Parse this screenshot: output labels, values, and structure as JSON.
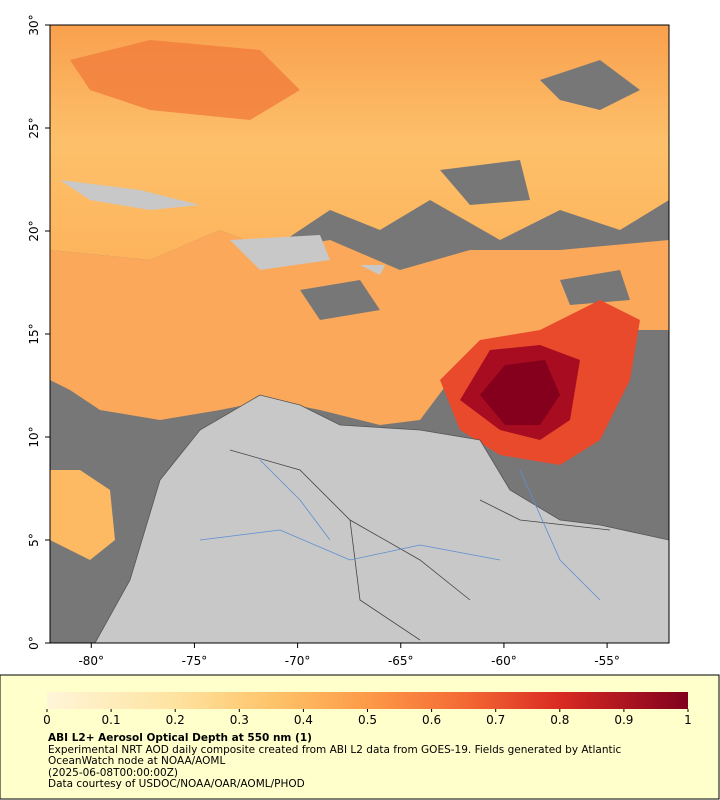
{
  "map": {
    "xlim": [
      -82,
      -52
    ],
    "ylim": [
      0,
      30
    ],
    "xticks": [
      {
        "value": -80,
        "label": "-80°"
      },
      {
        "value": -75,
        "label": "-75°"
      },
      {
        "value": -70,
        "label": "-70°"
      },
      {
        "value": -65,
        "label": "-65°"
      },
      {
        "value": -60,
        "label": "-60°"
      },
      {
        "value": -55,
        "label": "-55°"
      }
    ],
    "yticks": [
      {
        "value": 0,
        "label": "0°"
      },
      {
        "value": 5,
        "label": "5°"
      },
      {
        "value": 10,
        "label": "10°"
      },
      {
        "value": 15,
        "label": "15°"
      },
      {
        "value": 20,
        "label": "20°"
      },
      {
        "value": 25,
        "label": "25°"
      },
      {
        "value": 30,
        "label": "30°"
      }
    ]
  },
  "colorbar": {
    "lim": [
      0,
      1
    ],
    "ticks": [
      0,
      0.1,
      0.2,
      0.3,
      0.4,
      0.5,
      0.6,
      0.7,
      0.8,
      0.9,
      1
    ]
  },
  "info": {
    "title": "ABI L2+ Aerosol Optical Depth at 550 nm (1)",
    "description": "Experimental NRT AOD daily composite created from ABI L2 data from GOES-19. Fields generated by Atlantic OceanWatch node at NOAA/AOML",
    "date": "(2025-06-08T00:00:00Z)",
    "credit": "Data courtesy of USDOC/NOAA/OAR/AOML/PHOD"
  }
}
